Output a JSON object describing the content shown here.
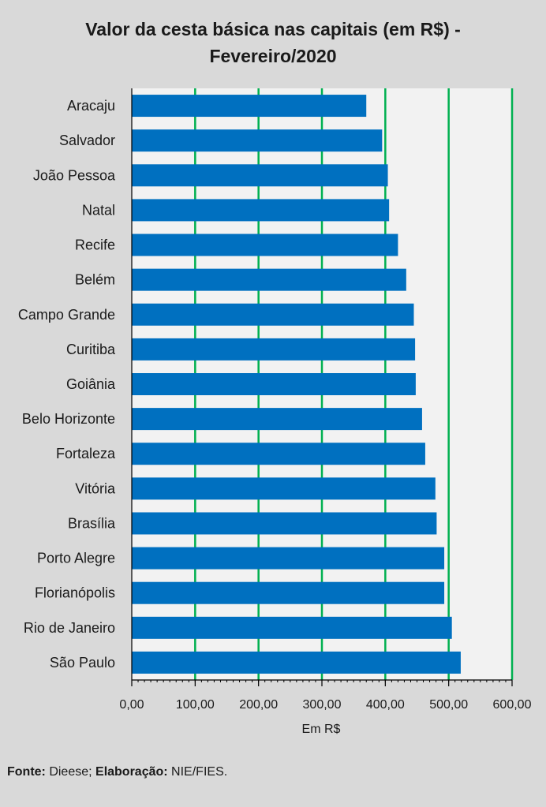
{
  "chart_data": {
    "type": "bar",
    "orientation": "horizontal",
    "title": "Valor da cesta básica nas capitais (em R$) -",
    "subtitle": "Fevereiro/2020",
    "xlabel": "Em R$",
    "ylabel": "",
    "xlim": [
      0,
      600
    ],
    "x_ticks": [
      "0,00",
      "100,00",
      "200,00",
      "300,00",
      "400,00",
      "500,00",
      "600,00"
    ],
    "x_tick_values": [
      0,
      100,
      200,
      300,
      400,
      500,
      600
    ],
    "grid": true,
    "legend": "none",
    "categories": [
      "Aracaju",
      "Salvador",
      "João Pessoa",
      "Natal",
      "Recife",
      "Belém",
      "Campo Grande",
      "Curitiba",
      "Goiânia",
      "Belo Horizonte",
      "Fortaleza",
      "Vitória",
      "Brasília",
      "Porto Alegre",
      "Florianópolis",
      "Rio de Janeiro",
      "São Paulo"
    ],
    "values": [
      370,
      395,
      404,
      406,
      420,
      433,
      445,
      447,
      448,
      458,
      463,
      479,
      481,
      493,
      493,
      505,
      519
    ],
    "colors": {
      "bar": "#0070c0",
      "grid": "#00b050",
      "plot_bg": "#f2f2f2",
      "page_bg": "#d9d9d9"
    }
  },
  "footer": {
    "source_label": "Fonte:",
    "source_value": " Dieese; ",
    "elab_label": "Elaboração:",
    "elab_value": " NIE/FIES."
  }
}
